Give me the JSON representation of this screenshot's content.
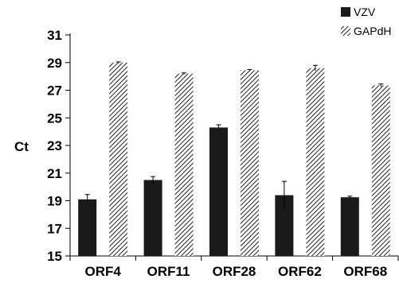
{
  "chart_data": {
    "type": "bar",
    "ylabel": "Ct",
    "xlabel": "",
    "ylim": [
      15,
      31
    ],
    "yticks": [
      15,
      17,
      19,
      21,
      23,
      25,
      27,
      29,
      31
    ],
    "categories": [
      "ORF4",
      "ORF11",
      "ORF28",
      "ORF62",
      "ORF68"
    ],
    "series": [
      {
        "name": "VZV",
        "pattern": "solid",
        "color": "#1a1a1a",
        "values": [
          19.1,
          20.5,
          24.3,
          19.4,
          19.25
        ],
        "errors": [
          0.35,
          0.25,
          0.2,
          1.0,
          0.08
        ]
      },
      {
        "name": "GAPdH",
        "pattern": "diagonal-hatch",
        "color": "#222222",
        "values": [
          29.0,
          28.2,
          28.45,
          28.6,
          27.35
        ],
        "errors": [
          0.05,
          0.05,
          0.05,
          0.2,
          0.1
        ]
      }
    ],
    "legend_position": "top-right",
    "grid": false
  }
}
